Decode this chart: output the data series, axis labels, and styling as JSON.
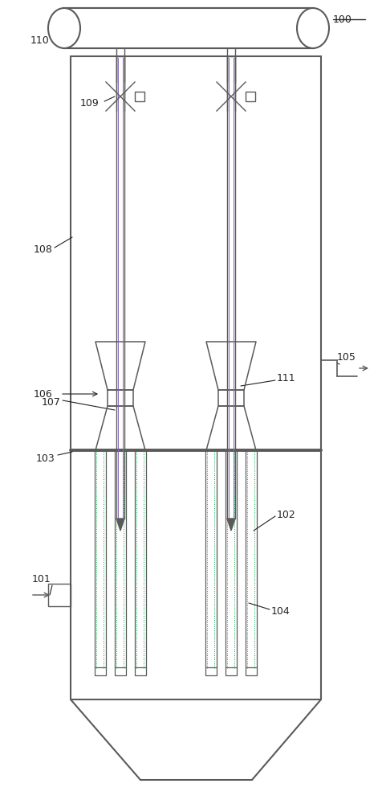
{
  "fig_width": 4.77,
  "fig_height": 10.0,
  "dpi": 100,
  "lc": "#5a5a5a",
  "gc": "#00aa44",
  "pc": "#8866bb",
  "bg": "#ffffff"
}
